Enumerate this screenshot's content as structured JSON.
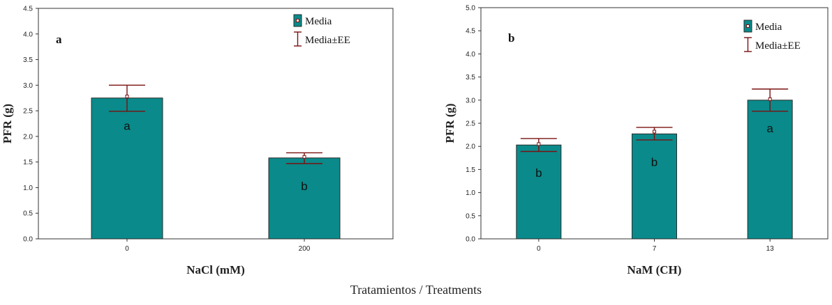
{
  "colors": {
    "bar_fill": "#0a8a8a",
    "bar_edge": "#2b2b2b",
    "error": "#7a1010",
    "axis": "#333333"
  },
  "footer": "Tratamientos / Treatments",
  "legend": {
    "mean_label": "Media",
    "error_label": "Media±EE"
  },
  "chart_data": [
    {
      "type": "bar",
      "panel_label": "a",
      "title": "",
      "xlabel": "NaCl (mM)",
      "ylabel": "PFR (g)",
      "categories": [
        "0",
        "200"
      ],
      "values": [
        2.75,
        1.58
      ],
      "means": [
        2.78,
        1.6
      ],
      "error_low": [
        2.49,
        1.47
      ],
      "error_high": [
        3.0,
        1.68
      ],
      "significance": [
        "a",
        "b"
      ],
      "ylim": [
        0,
        4.5
      ],
      "yticks": [
        "0.0",
        "0.5",
        "1.0",
        "1.5",
        "2.0",
        "2.5",
        "3.0",
        "3.5",
        "4.0",
        "4.5"
      ],
      "grid": false,
      "legend_position": "top-right"
    },
    {
      "type": "bar",
      "panel_label": "b",
      "title": "",
      "xlabel": "NaM (CH)",
      "ylabel": "PFR (g)",
      "categories": [
        "0",
        "7",
        "13"
      ],
      "values": [
        2.03,
        2.27,
        3.0
      ],
      "means": [
        2.05,
        2.32,
        3.02
      ],
      "error_low": [
        1.89,
        2.14,
        2.76
      ],
      "error_high": [
        2.17,
        2.41,
        3.24
      ],
      "significance": [
        "b",
        "b",
        "a"
      ],
      "ylim": [
        0,
        5.0
      ],
      "yticks": [
        "0.0",
        "0.5",
        "1.0",
        "1.5",
        "2.0",
        "2.5",
        "3.0",
        "3.5",
        "4.0",
        "4.5",
        "5.0"
      ],
      "grid": false,
      "legend_position": "top-right"
    }
  ]
}
